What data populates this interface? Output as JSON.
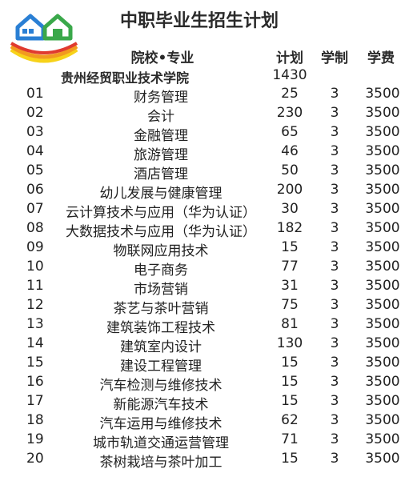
{
  "title": "中职毕业生招生计划",
  "headers": {
    "name": "院校•专业",
    "plan": "计划",
    "years": "学制",
    "fee": "学费"
  },
  "school": {
    "name": "贵州经贸职业技术学院",
    "total": "1430"
  },
  "rows": [
    {
      "no": "01",
      "name": "财务管理",
      "plan": "25",
      "years": "3",
      "fee": "3500"
    },
    {
      "no": "02",
      "name": "会计",
      "plan": "230",
      "years": "3",
      "fee": "3500"
    },
    {
      "no": "03",
      "name": "金融管理",
      "plan": "65",
      "years": "3",
      "fee": "3500"
    },
    {
      "no": "04",
      "name": "旅游管理",
      "plan": "46",
      "years": "3",
      "fee": "3500"
    },
    {
      "no": "05",
      "name": "酒店管理",
      "plan": "50",
      "years": "3",
      "fee": "3500"
    },
    {
      "no": "06",
      "name": "幼儿发展与健康管理",
      "plan": "200",
      "years": "3",
      "fee": "3500"
    },
    {
      "no": "07",
      "name": "云计算技术与应用（华为认证）",
      "plan": "30",
      "years": "3",
      "fee": "3500"
    },
    {
      "no": "08",
      "name": "大数据技术与应用（华为认证）",
      "plan": "182",
      "years": "3",
      "fee": "3500"
    },
    {
      "no": "09",
      "name": "物联网应用技术",
      "plan": "15",
      "years": "3",
      "fee": "3500"
    },
    {
      "no": "10",
      "name": "电子商务",
      "plan": "77",
      "years": "3",
      "fee": "3500"
    },
    {
      "no": "11",
      "name": "市场营销",
      "plan": "31",
      "years": "3",
      "fee": "3500"
    },
    {
      "no": "12",
      "name": "茶艺与茶叶营销",
      "plan": "75",
      "years": "3",
      "fee": "3500"
    },
    {
      "no": "13",
      "name": "建筑装饰工程技术",
      "plan": "81",
      "years": "3",
      "fee": "3500"
    },
    {
      "no": "14",
      "name": "建筑室内设计",
      "plan": "130",
      "years": "3",
      "fee": "3500"
    },
    {
      "no": "15",
      "name": "建设工程管理",
      "plan": "15",
      "years": "3",
      "fee": "3500"
    },
    {
      "no": "16",
      "name": "汽车检测与维修技术",
      "plan": "15",
      "years": "3",
      "fee": "3500"
    },
    {
      "no": "17",
      "name": "新能源汽车技术",
      "plan": "15",
      "years": "3",
      "fee": "3500"
    },
    {
      "no": "18",
      "name": "汽车运用与维修技术",
      "plan": "62",
      "years": "3",
      "fee": "3500"
    },
    {
      "no": "19",
      "name": "城市轨道交通运营管理",
      "plan": "71",
      "years": "3",
      "fee": "3500"
    },
    {
      "no": "20",
      "name": "茶树栽培与茶叶加工",
      "plan": "15",
      "years": "3",
      "fee": "3500"
    }
  ],
  "logo": {
    "icon": "houses-rainbow-logo",
    "colors": {
      "blue": "#2a7fd4",
      "green": "#3aa84a",
      "red": "#e03a2f",
      "orange": "#f29a1f",
      "yellow": "#f7d21a"
    }
  }
}
